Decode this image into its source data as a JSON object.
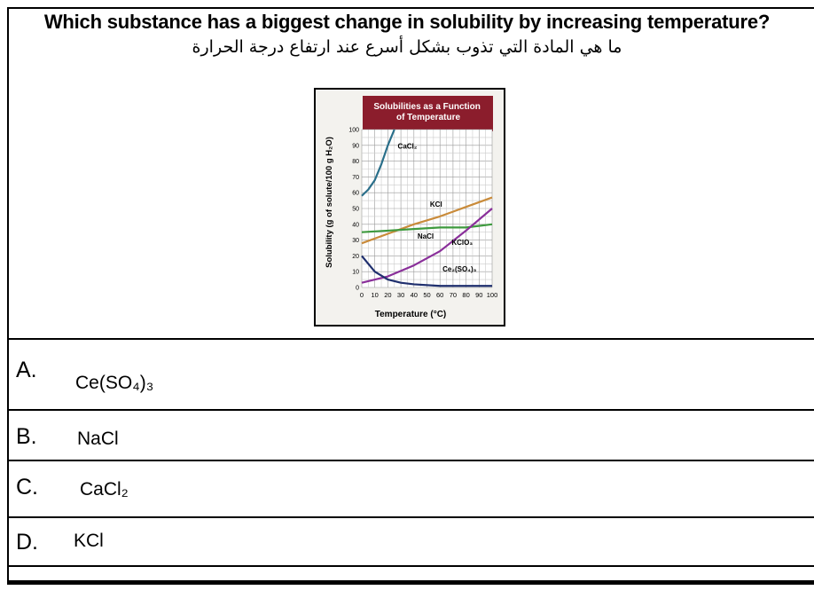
{
  "question": {
    "english": "Which substance has a biggest change in solubility by increasing temperature?",
    "arabic": "ما هي المادة التي تذوب بشكل أسرع عند ارتفاع درجة الحرارة"
  },
  "chart_data": {
    "type": "line",
    "title": "Solubilities as a Function of Temperature",
    "xlabel": "Temperature (°C)",
    "ylabel": "Solubility (g of solute/100 g H₂O)",
    "xlim": [
      0,
      100
    ],
    "ylim": [
      0,
      100
    ],
    "x_ticks": [
      "0",
      "10",
      "20",
      "30",
      "40",
      "50",
      "60",
      "70",
      "80",
      "90",
      "100"
    ],
    "y_ticks": [
      "0",
      "10",
      "20",
      "30",
      "40",
      "50",
      "60",
      "70",
      "80",
      "90",
      "100"
    ],
    "grid": true,
    "series": [
      {
        "name": "CaCl₂",
        "color": "#2a6f8a",
        "x": [
          0,
          5,
          10,
          15,
          20,
          25
        ],
        "y": [
          58,
          62,
          68,
          78,
          90,
          100
        ]
      },
      {
        "name": "KCl",
        "color": "#c98b3a",
        "x": [
          0,
          20,
          40,
          60,
          80,
          100
        ],
        "y": [
          28,
          34,
          40,
          45,
          51,
          57
        ]
      },
      {
        "name": "NaCl",
        "color": "#3e9a3e",
        "x": [
          0,
          20,
          40,
          60,
          80,
          100
        ],
        "y": [
          35,
          36,
          37,
          38,
          38,
          40
        ]
      },
      {
        "name": "KClO₃",
        "color": "#8a2f9a",
        "x": [
          0,
          20,
          40,
          60,
          80,
          100
        ],
        "y": [
          3,
          7,
          14,
          23,
          36,
          50
        ]
      },
      {
        "name": "Ce₂(SO₄)₃",
        "color": "#1f2f6e",
        "x": [
          0,
          10,
          20,
          30,
          40,
          60,
          80,
          100
        ],
        "y": [
          20,
          10,
          5,
          3,
          2,
          1,
          1,
          1
        ]
      }
    ]
  },
  "options": [
    {
      "letter": "A.",
      "text": "Ce(SO₄)₃"
    },
    {
      "letter": "B.",
      "text": "NaCl"
    },
    {
      "letter": "C.",
      "text": "CaCl₂"
    },
    {
      "letter": "D.",
      "text": "KCl"
    }
  ]
}
